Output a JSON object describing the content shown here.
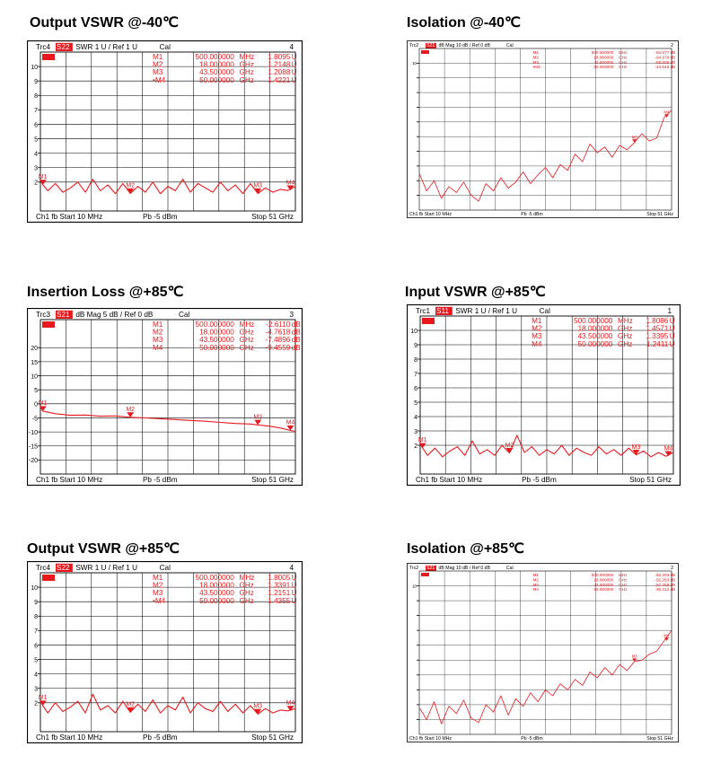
{
  "colors": {
    "trace": "#e8191d",
    "grid": "#000000",
    "frame": "#000000",
    "background": "#ffffff"
  },
  "chart_data": [
    {
      "id": "p0",
      "title": "Output VSWR @-40℃",
      "type": "line",
      "header": {
        "trc": "Trc4",
        "param": "S22",
        "format": "SWR  1 U /  Ref 1 U",
        "cal": "Cal",
        "num": "4"
      },
      "footer": {
        "ch": "Ch1  fb  Start  10 MHz",
        "pb": "Pb  -5 dBm",
        "stop": "Stop  51 GHz"
      },
      "ylim": [
        0,
        11
      ],
      "ytick_values": [
        2,
        3,
        4,
        5,
        6,
        7,
        8,
        9,
        10
      ],
      "ytick_labels": [
        "2",
        "3",
        "4",
        "5",
        "6",
        "7",
        "8",
        "9",
        "10"
      ],
      "xlim_ghz": [
        0.01,
        51
      ],
      "markers_table": [
        {
          "name": "M1",
          "freq": "500.000000",
          "unit": "MHz",
          "value": "1.8095",
          "vunit": "U"
        },
        {
          "name": "M2",
          "freq": "18.000000",
          "unit": "GHz",
          "value": "1.2148",
          "vunit": "U"
        },
        {
          "name": "M3",
          "freq": "43.500000",
          "unit": "GHz",
          "value": "1.2088",
          "vunit": "U"
        },
        {
          "name": "•M4",
          "freq": "50.000000",
          "unit": "GHz",
          "value": "1.4221",
          "vunit": "U"
        }
      ],
      "markers": [
        {
          "label": "M1",
          "x": 0.5,
          "y": 1.81
        },
        {
          "label": "M2",
          "x": 18,
          "y": 1.21
        },
        {
          "label": "M3",
          "x": 43.5,
          "y": 1.21
        },
        {
          "label": "M4",
          "x": 50,
          "y": 1.42
        }
      ],
      "series": [
        {
          "x": [
            0.01,
            0.5,
            1.5,
            3,
            4.5,
            6,
            7.5,
            9,
            10.5,
            12,
            13.5,
            15,
            16.5,
            18,
            19.5,
            21,
            22.5,
            24,
            25.5,
            27,
            28.5,
            30,
            31.5,
            33,
            34.5,
            36,
            37.5,
            39,
            40.5,
            42,
            43.5,
            45,
            46.5,
            48,
            49.5,
            51
          ],
          "y": [
            2.2,
            1.81,
            1.4,
            1.9,
            1.3,
            1.6,
            2.0,
            1.3,
            2.2,
            1.4,
            1.8,
            1.2,
            1.9,
            1.21,
            1.7,
            1.3,
            2.0,
            1.2,
            1.7,
            1.4,
            2.2,
            1.3,
            1.9,
            1.6,
            1.3,
            2.0,
            1.4,
            1.8,
            1.2,
            1.9,
            1.21,
            1.6,
            1.3,
            1.5,
            1.42,
            1.7
          ]
        }
      ]
    },
    {
      "id": "p1",
      "title": "Isolation @-40℃",
      "type": "line",
      "header": {
        "trc": "Trc2",
        "param": "S21",
        "format": "dB Mag  10 dB /  Ref 0 dB",
        "cal": "Cal",
        "num": "2"
      },
      "footer": {
        "ch": "Ch1  fb  Start  10 MHz",
        "pb": "Pb  -5 dBm",
        "stop": "Stop  51 GHz"
      },
      "ylim": [
        0,
        11
      ],
      "ytick_values": [
        1,
        2,
        3,
        4,
        5,
        6,
        7,
        8,
        9,
        10
      ],
      "ytick_labels": [
        "",
        "",
        "",
        "",
        "",
        "",
        "",
        "",
        "",
        "10"
      ],
      "xlim_ghz": [
        0.01,
        51
      ],
      "markers_table": [
        {
          "name": "M1",
          "freq": "500.000000",
          "unit": "MHz",
          "value": "-94.577",
          "vunit": "dB"
        },
        {
          "name": "M2",
          "freq": "18.000000",
          "unit": "GHz",
          "value": "-94.978",
          "vunit": "dB"
        },
        {
          "name": "M3",
          "freq": "43.500000",
          "unit": "GHz",
          "value": "-58.609",
          "vunit": "dB"
        },
        {
          "name": "•M4",
          "freq": "50.000000",
          "unit": "GHz",
          "value": "-44.548",
          "vunit": "dB"
        }
      ],
      "markers": [
        {
          "label": "M3",
          "x": 43.5,
          "y": 4.6
        },
        {
          "label": "M4",
          "x": 50,
          "y": 6.3
        }
      ],
      "series": [
        {
          "x": [
            0.01,
            1.5,
            3,
            4.5,
            6,
            7.5,
            9,
            10.5,
            12,
            13.5,
            15,
            16.5,
            18,
            19.5,
            21,
            22.5,
            24,
            25.5,
            27,
            28.5,
            30,
            31.5,
            33,
            34.5,
            36,
            37.5,
            39,
            40.5,
            42,
            43.5,
            45,
            46.5,
            48,
            49.5,
            51
          ],
          "y": [
            2.5,
            1.3,
            2.0,
            0.8,
            1.6,
            1.2,
            1.9,
            1.0,
            0.6,
            1.8,
            1.3,
            2.2,
            1.5,
            1.9,
            2.6,
            1.8,
            2.4,
            2.9,
            2.2,
            3.1,
            2.7,
            3.8,
            3.3,
            4.5,
            3.9,
            4.3,
            3.6,
            4.4,
            4.1,
            4.6,
            5.2,
            4.7,
            4.9,
            6.3,
            6.8
          ]
        }
      ]
    },
    {
      "id": "p2",
      "title": "Insertion Loss @+85℃",
      "type": "line",
      "header": {
        "trc": "Trc3",
        "param": "S21",
        "format": "dB Mag  5 dB /  Ref 0 dB",
        "cal": "Cal",
        "num": "3"
      },
      "footer": {
        "ch": "Ch1  fb  Start  10 MHz",
        "pb": "Pb  -5 dBm",
        "stop": "Stop  51 GHz"
      },
      "ylim": [
        -25,
        30
      ],
      "ytick_values": [
        -20,
        -15,
        -10,
        -5,
        0,
        5,
        10,
        15,
        20
      ],
      "ytick_labels": [
        "-20",
        "-15",
        "-10",
        "-5",
        "0",
        "5",
        "10",
        "15",
        "20"
      ],
      "xlim_ghz": [
        0.01,
        51
      ],
      "markers_table": [
        {
          "name": "M1",
          "freq": "500.000000",
          "unit": "MHz",
          "value": "-2.6110",
          "vunit": "dB"
        },
        {
          "name": "M2",
          "freq": "18.000000",
          "unit": "GHz",
          "value": "-4.7618",
          "vunit": "dB"
        },
        {
          "name": "M3",
          "freq": "43.500000",
          "unit": "GHz",
          "value": "-7.4896",
          "vunit": "dB"
        },
        {
          "name": "M4",
          "freq": "50.000000",
          "unit": "GHz",
          "value": "-9.4559",
          "vunit": "dB"
        }
      ],
      "markers": [
        {
          "label": "M1",
          "x": 0.5,
          "y": -2.6
        },
        {
          "label": "M2",
          "x": 18,
          "y": -4.8
        },
        {
          "label": "M3",
          "x": 43.5,
          "y": -7.5
        },
        {
          "label": "M4",
          "x": 50,
          "y": -9.5
        }
      ],
      "series": [
        {
          "x": [
            0.01,
            0.5,
            3,
            6,
            9,
            12,
            15,
            18,
            21,
            24,
            27,
            30,
            33,
            36,
            39,
            42,
            43.5,
            46,
            48,
            50,
            51
          ],
          "y": [
            -1.0,
            -2.6,
            -3.5,
            -4.1,
            -4.0,
            -4.4,
            -4.3,
            -4.8,
            -5.0,
            -5.3,
            -5.6,
            -5.9,
            -6.2,
            -6.6,
            -7.0,
            -7.2,
            -7.5,
            -8.0,
            -8.6,
            -9.5,
            -9.8
          ]
        }
      ]
    },
    {
      "id": "p3",
      "title": "Input VSWR @+85℃",
      "type": "line",
      "header": {
        "trc": "Trc1",
        "param": "S11",
        "format": "SWR  1 U /  Ref 1 U",
        "cal": "Cal",
        "num": "1"
      },
      "footer": {
        "ch": "Ch1  fb  Start  10 MHz",
        "pb": "Pb  -5 dBm",
        "stop": "Stop  51 GHz"
      },
      "ylim": [
        0,
        11
      ],
      "ytick_values": [
        2,
        3,
        4,
        5,
        6,
        7,
        8,
        9,
        10
      ],
      "ytick_labels": [
        "2",
        "3",
        "4",
        "5",
        "6",
        "7",
        "8",
        "9",
        "10"
      ],
      "xlim_ghz": [
        0.01,
        51
      ],
      "markers_table": [
        {
          "name": "M1",
          "freq": "500.000000",
          "unit": "MHz",
          "value": "1.8086",
          "vunit": "U"
        },
        {
          "name": "M2",
          "freq": "18.000000",
          "unit": "GHz",
          "value": "1.4571",
          "vunit": "U"
        },
        {
          "name": "M3",
          "freq": "43.500000",
          "unit": "GHz",
          "value": "1.3395",
          "vunit": "U"
        },
        {
          "name": "M4",
          "freq": "50.000000",
          "unit": "GHz",
          "value": "1.2411",
          "vunit": "U"
        }
      ],
      "markers": [
        {
          "label": "M1",
          "x": 0.5,
          "y": 1.81
        },
        {
          "label": "M2",
          "x": 18,
          "y": 1.46
        },
        {
          "label": "M3",
          "x": 43.5,
          "y": 1.34
        },
        {
          "label": "M4",
          "x": 50,
          "y": 1.24
        }
      ],
      "series": [
        {
          "x": [
            0.01,
            0.5,
            1.5,
            3,
            4.5,
            6,
            7.5,
            9,
            10.5,
            12,
            13.5,
            15,
            16.5,
            18,
            19.5,
            21,
            22.5,
            24,
            25.5,
            27,
            28.5,
            30,
            31.5,
            33,
            34.5,
            36,
            37.5,
            39,
            40.5,
            42,
            43.5,
            45,
            46.5,
            48,
            49.5,
            51
          ],
          "y": [
            2.1,
            1.81,
            1.3,
            1.8,
            1.2,
            1.6,
            1.9,
            1.3,
            2.3,
            1.4,
            1.7,
            1.3,
            2.0,
            1.46,
            2.7,
            1.5,
            1.9,
            1.3,
            1.7,
            1.4,
            2.0,
            1.3,
            1.8,
            1.5,
            1.3,
            1.9,
            1.4,
            1.7,
            1.3,
            1.8,
            1.34,
            1.6,
            1.2,
            1.5,
            1.24,
            1.5
          ]
        }
      ]
    },
    {
      "id": "p4",
      "title": "Output VSWR @+85℃",
      "type": "line",
      "header": {
        "trc": "Trc4",
        "param": "S22",
        "format": "SWR  1 U /  Ref 1 U",
        "cal": "Cal",
        "num": "4"
      },
      "footer": {
        "ch": "Ch1  fb  Start  10 MHz",
        "pb": "Pb  -5 dBm",
        "stop": "Stop  51 GHz"
      },
      "ylim": [
        0,
        11
      ],
      "ytick_values": [
        2,
        3,
        4,
        5,
        6,
        7,
        8,
        9,
        10
      ],
      "ytick_labels": [
        "2",
        "3",
        "4",
        "5",
        "6",
        "7",
        "8",
        "9",
        "10"
      ],
      "xlim_ghz": [
        0.01,
        51
      ],
      "markers_table": [
        {
          "name": "M1",
          "freq": "500.000000",
          "unit": "MHz",
          "value": "1.8005",
          "vunit": "U"
        },
        {
          "name": "M2",
          "freq": "18.000000",
          "unit": "GHz",
          "value": "1.3391",
          "vunit": "U"
        },
        {
          "name": "M3",
          "freq": "43.500000",
          "unit": "GHz",
          "value": "1.2151",
          "vunit": "U"
        },
        {
          "name": "•M4",
          "freq": "50.000000",
          "unit": "GHz",
          "value": "1.4355",
          "vunit": "U"
        }
      ],
      "markers": [
        {
          "label": "M1",
          "x": 0.5,
          "y": 1.8
        },
        {
          "label": "M2",
          "x": 18,
          "y": 1.34
        },
        {
          "label": "M3",
          "x": 43.5,
          "y": 1.22
        },
        {
          "label": "M4",
          "x": 50,
          "y": 1.44
        }
      ],
      "series": [
        {
          "x": [
            0.01,
            0.5,
            1.5,
            3,
            4.5,
            6,
            7.5,
            9,
            10.5,
            12,
            13.5,
            15,
            16.5,
            18,
            19.5,
            21,
            22.5,
            24,
            25.5,
            27,
            28.5,
            30,
            31.5,
            33,
            34.5,
            36,
            37.5,
            39,
            40.5,
            42,
            43.5,
            45,
            46.5,
            48,
            49.5,
            51
          ],
          "y": [
            2.2,
            1.8,
            1.3,
            2.0,
            1.4,
            1.7,
            2.1,
            1.3,
            2.6,
            1.5,
            1.8,
            1.3,
            2.1,
            1.34,
            1.9,
            1.4,
            2.2,
            1.3,
            1.8,
            1.5,
            2.4,
            1.3,
            2.0,
            1.6,
            1.4,
            2.1,
            1.4,
            1.9,
            1.3,
            1.8,
            1.22,
            1.6,
            1.3,
            1.5,
            1.44,
            1.6
          ]
        }
      ]
    },
    {
      "id": "p5",
      "title": "Isolation @+85℃",
      "type": "line",
      "header": {
        "trc": "Trc2",
        "param": "S21",
        "format": "dB Mag  10 dB /  Ref 0 dB",
        "cal": "Cal",
        "num": "2"
      },
      "footer": {
        "ch": "Ch1  fb  Start  10 MHz",
        "pb": "Pb  -5 dBm",
        "stop": "Stop  51 GHz"
      },
      "ylim": [
        0,
        11
      ],
      "ytick_values": [
        1,
        2,
        3,
        4,
        5,
        6,
        7,
        8,
        9,
        10
      ],
      "ytick_labels": [
        "",
        "",
        "",
        "",
        "",
        "",
        "",
        "",
        "",
        "10"
      ],
      "xlim_ghz": [
        0.01,
        51
      ],
      "markers_table": [
        {
          "name": "M1",
          "freq": "500.000000",
          "unit": "MHz",
          "value": "-92.203",
          "vunit": "dB"
        },
        {
          "name": "M2",
          "freq": "18.000000",
          "unit": "GHz",
          "value": "-92.253",
          "vunit": "dB"
        },
        {
          "name": "M3",
          "freq": "43.500000",
          "unit": "GHz",
          "value": "-57.259",
          "vunit": "dB"
        },
        {
          "name": "M4",
          "freq": "50.000000",
          "unit": "GHz",
          "value": "-45.212",
          "vunit": "dB"
        }
      ],
      "markers": [
        {
          "label": "M3",
          "x": 43.5,
          "y": 4.9
        },
        {
          "label": "M4",
          "x": 50,
          "y": 6.3
        }
      ],
      "series": [
        {
          "x": [
            0.01,
            1.5,
            3,
            4.5,
            6,
            7.5,
            9,
            10.5,
            12,
            13.5,
            15,
            16.5,
            18,
            19.5,
            21,
            22.5,
            24,
            25.5,
            27,
            28.5,
            30,
            31.5,
            33,
            34.5,
            36,
            37.5,
            39,
            40.5,
            42,
            43.5,
            45,
            46.5,
            48,
            49.5,
            51
          ],
          "y": [
            1.8,
            1.0,
            2.2,
            0.7,
            1.9,
            1.4,
            2.3,
            1.1,
            0.8,
            2.0,
            1.5,
            2.6,
            1.3,
            2.4,
            1.9,
            2.8,
            2.2,
            3.0,
            2.6,
            3.4,
            3.0,
            3.7,
            3.3,
            4.2,
            3.8,
            4.5,
            4.0,
            4.7,
            4.3,
            4.9,
            5.0,
            5.4,
            5.6,
            6.3,
            7.0
          ]
        }
      ]
    }
  ]
}
